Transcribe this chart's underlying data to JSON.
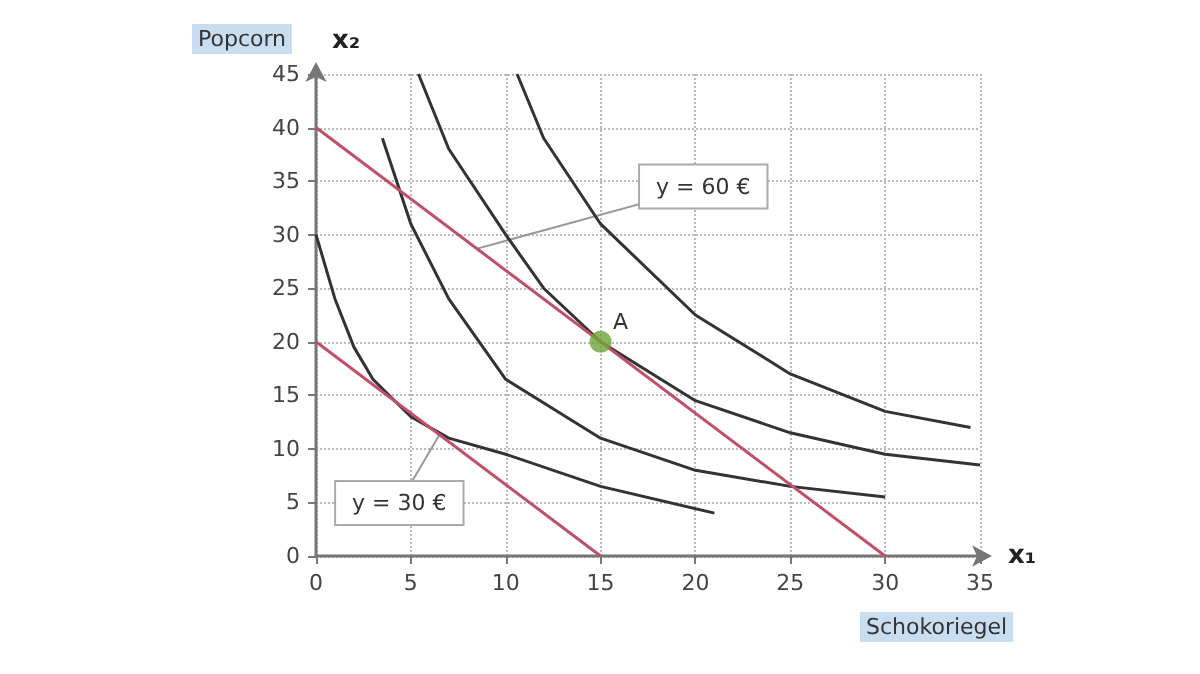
{
  "chart_data": {
    "type": "line",
    "xlabel": "x₁",
    "ylabel": "x₂",
    "xlim": [
      0,
      35
    ],
    "ylim": [
      0,
      45
    ],
    "xticks": [
      0,
      5,
      10,
      15,
      20,
      25,
      30,
      35
    ],
    "yticks": [
      0,
      5,
      10,
      15,
      20,
      25,
      30,
      35,
      40,
      45
    ],
    "grid": true,
    "marker": "none",
    "line_style": "solid",
    "series": [
      {
        "color": "#333333",
        "x": [
          0,
          1,
          2,
          3,
          5,
          7,
          10,
          15,
          21
        ],
        "values": [
          30,
          24,
          19.5,
          16.5,
          13,
          11,
          9.5,
          6.5,
          4
        ]
      },
      {
        "color": "#333333",
        "x": [
          3.5,
          5,
          7,
          10,
          15,
          20,
          25,
          30
        ],
        "values": [
          39,
          31,
          24,
          16.5,
          11,
          8,
          6.5,
          5.5
        ]
      },
      {
        "color": "#333333",
        "x": [
          5.4,
          7,
          10,
          12,
          15,
          20,
          25,
          30,
          35
        ],
        "values": [
          45,
          38,
          30,
          25,
          20,
          14.5,
          11.5,
          9.5,
          8.5
        ]
      },
      {
        "color": "#333333",
        "x": [
          10.6,
          12,
          15,
          20,
          25,
          30,
          34.5
        ],
        "values": [
          45,
          39,
          31,
          22.5,
          17,
          13.5,
          12
        ]
      },
      {
        "color": "#c0506a",
        "x": [
          0,
          30
        ],
        "values": [
          40,
          0
        ]
      },
      {
        "color": "#c0506a",
        "x": [
          0,
          15
        ],
        "values": [
          20,
          0
        ]
      },
      {
        "type": "scatter",
        "marker": "circle",
        "color": "#6aa535",
        "x": [
          15
        ],
        "values": [
          20
        ]
      }
    ],
    "annotations": [
      "Schokoriegel",
      "Popcorn",
      {
        "text": "y = 60 €",
        "x": 8.5,
        "y": 28.7
      },
      {
        "text": "y = 30 €",
        "x": 6.5,
        "y": 11.3
      },
      {
        "text": "A",
        "x": 15,
        "y": 20
      }
    ]
  }
}
